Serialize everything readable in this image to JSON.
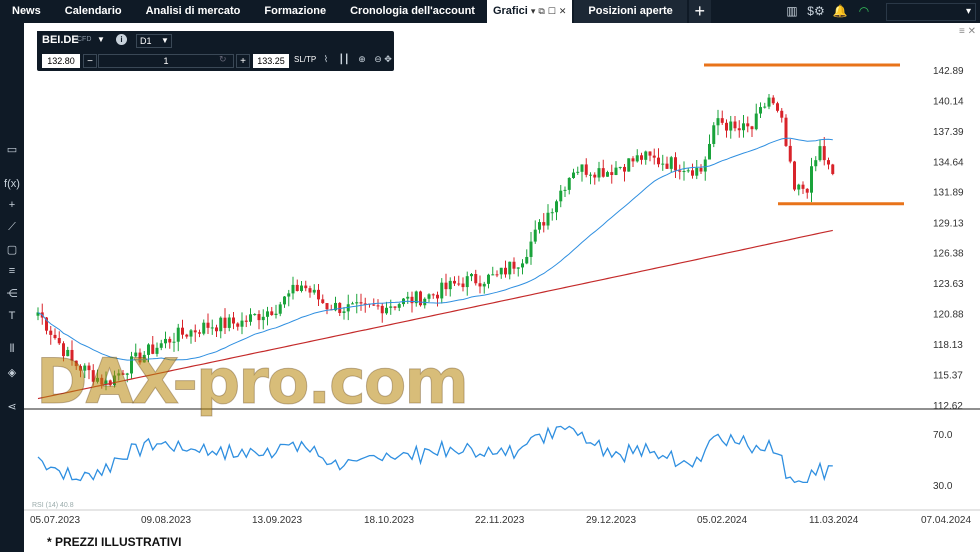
{
  "nav": {
    "items": [
      "News",
      "Calendario",
      "Analisi di mercato",
      "Formazione",
      "Cronologia dell'account"
    ],
    "active_tab": "Grafici",
    "open_tab": "Posizioni aperte",
    "plus": "+"
  },
  "top_right_icons": [
    "layout-icon",
    "dollar-settings-icon",
    "bell-icon",
    "wifi-icon"
  ],
  "panel": {
    "symbol": "BEI.DE",
    "badge": "CFD",
    "timeframe": "D1",
    "bid": "132.80",
    "minus": "−",
    "quantity": "1",
    "plus": "+",
    "ask": "133.25",
    "sltp": "SL/TP"
  },
  "watermark": "DAX-pro.com",
  "rsi_label": "RSI (14) 40.8",
  "footnote": "* PREZZI ILLUSTRATIVI",
  "chart_data": {
    "type": "candlestick",
    "price_axis": [
      "142.89",
      "140.14",
      "137.39",
      "134.64",
      "131.89",
      "129.13",
      "126.38",
      "123.63",
      "120.88",
      "118.13",
      "115.37",
      "112.62"
    ],
    "rsi_axis": [
      "70.0",
      "30.0"
    ],
    "date_axis": [
      "05.07.2023",
      "09.08.2023",
      "13.09.2023",
      "18.10.2023",
      "22.11.2023",
      "29.12.2023",
      "05.02.2024",
      "11.03.2024",
      "07.04.2024"
    ],
    "colors": {
      "up": "#1aa33b",
      "down": "#d8232a",
      "ma_fast": "#2f8fe0",
      "ma_slow": "#c42a2a",
      "level": "#e8731a",
      "rsi": "#2f8fe0"
    },
    "horizontal_levels": [
      {
        "price": 142.89,
        "from": "05.02.2024",
        "color": "#e8731a"
      },
      {
        "price": 130.8,
        "from": "26.02.2024",
        "color": "#e8731a"
      }
    ]
  }
}
